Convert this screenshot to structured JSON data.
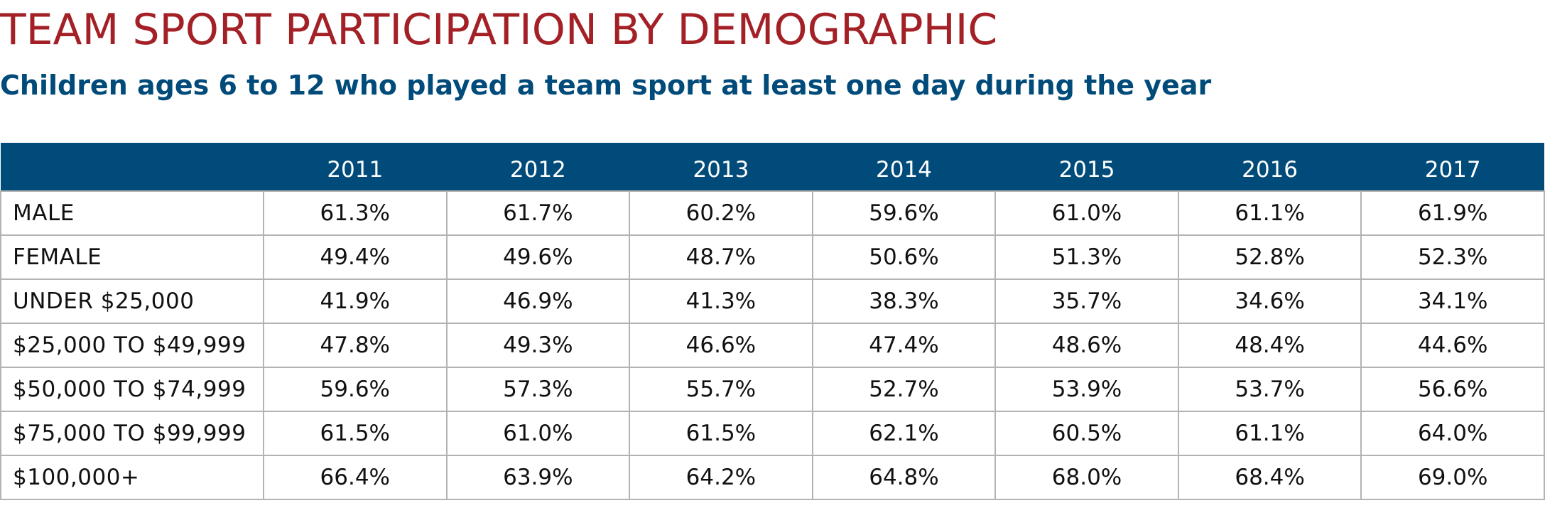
{
  "chart_data": {
    "type": "table",
    "title": "TEAM SPORT PARTICIPATION BY DEMOGRAPHIC",
    "subtitle": "Children ages 6 to 12 who played a team sport at least one day during the year",
    "corner_header": "",
    "columns": [
      "2011",
      "2012",
      "2013",
      "2014",
      "2015",
      "2016",
      "2017"
    ],
    "rows": [
      {
        "label": "MALE",
        "values": [
          "61.3%",
          "61.7%",
          "60.2%",
          "59.6%",
          "61.0%",
          "61.1%",
          "61.9%"
        ]
      },
      {
        "label": "FEMALE",
        "values": [
          "49.4%",
          "49.6%",
          "48.7%",
          "50.6%",
          "51.3%",
          "52.8%",
          "52.3%"
        ]
      },
      {
        "label": "UNDER $25,000",
        "values": [
          "41.9%",
          "46.9%",
          "41.3%",
          "38.3%",
          "35.7%",
          "34.6%",
          "34.1%"
        ]
      },
      {
        "label": "$25,000 TO $49,999",
        "values": [
          "47.8%",
          "49.3%",
          "46.6%",
          "47.4%",
          "48.6%",
          "48.4%",
          "44.6%"
        ]
      },
      {
        "label": "$50,000 TO $74,999",
        "values": [
          "59.6%",
          "57.3%",
          "55.7%",
          "52.7%",
          "53.9%",
          "53.7%",
          "56.6%"
        ]
      },
      {
        "label": "$75,000 TO $99,999",
        "values": [
          "61.5%",
          "61.0%",
          "61.5%",
          "62.1%",
          "60.5%",
          "61.1%",
          "64.0%"
        ]
      },
      {
        "label": "$100,000+",
        "values": [
          "66.4%",
          "63.9%",
          "64.2%",
          "64.8%",
          "68.0%",
          "68.4%",
          "69.0%"
        ]
      }
    ]
  },
  "colors": {
    "title": "#a32126",
    "subtitle": "#004b7a",
    "header_background": "#004b7a",
    "header_text": "#ffffff",
    "grid": "#b3b3b3"
  }
}
